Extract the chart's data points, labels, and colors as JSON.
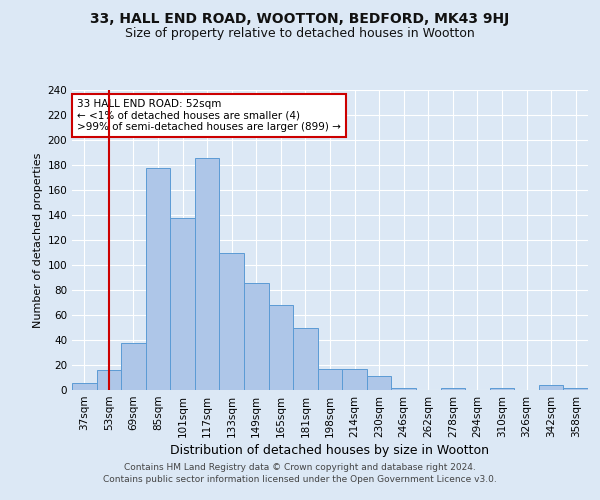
{
  "title": "33, HALL END ROAD, WOOTTON, BEDFORD, MK43 9HJ",
  "subtitle": "Size of property relative to detached houses in Wootton",
  "xlabel": "Distribution of detached houses by size in Wootton",
  "ylabel": "Number of detached properties",
  "categories": [
    "37sqm",
    "53sqm",
    "69sqm",
    "85sqm",
    "101sqm",
    "117sqm",
    "133sqm",
    "149sqm",
    "165sqm",
    "181sqm",
    "198sqm",
    "214sqm",
    "230sqm",
    "246sqm",
    "262sqm",
    "278sqm",
    "294sqm",
    "310sqm",
    "326sqm",
    "342sqm",
    "358sqm"
  ],
  "values": [
    6,
    16,
    38,
    178,
    138,
    186,
    110,
    86,
    68,
    50,
    17,
    17,
    11,
    2,
    0,
    2,
    0,
    2,
    0,
    4,
    2
  ],
  "bar_color": "#aec6e8",
  "bar_edge_color": "#5b9bd5",
  "bar_width": 1.0,
  "vline_x": 1,
  "vline_color": "#cc0000",
  "ylim": [
    0,
    240
  ],
  "yticks": [
    0,
    20,
    40,
    60,
    80,
    100,
    120,
    140,
    160,
    180,
    200,
    220,
    240
  ],
  "annotation_title": "33 HALL END ROAD: 52sqm",
  "annotation_line1": "← <1% of detached houses are smaller (4)",
  "annotation_line2": ">99% of semi-detached houses are larger (899) →",
  "annotation_box_color": "#ffffff",
  "annotation_box_edge": "#cc0000",
  "bg_color": "#dce8f5",
  "plot_bg_color": "#dce8f5",
  "grid_color": "#ffffff",
  "footnote1": "Contains HM Land Registry data © Crown copyright and database right 2024.",
  "footnote2": "Contains public sector information licensed under the Open Government Licence v3.0.",
  "title_fontsize": 10,
  "subtitle_fontsize": 9,
  "xlabel_fontsize": 9,
  "ylabel_fontsize": 8,
  "tick_fontsize": 7.5,
  "footnote_fontsize": 6.5,
  "annotation_fontsize": 7.5
}
